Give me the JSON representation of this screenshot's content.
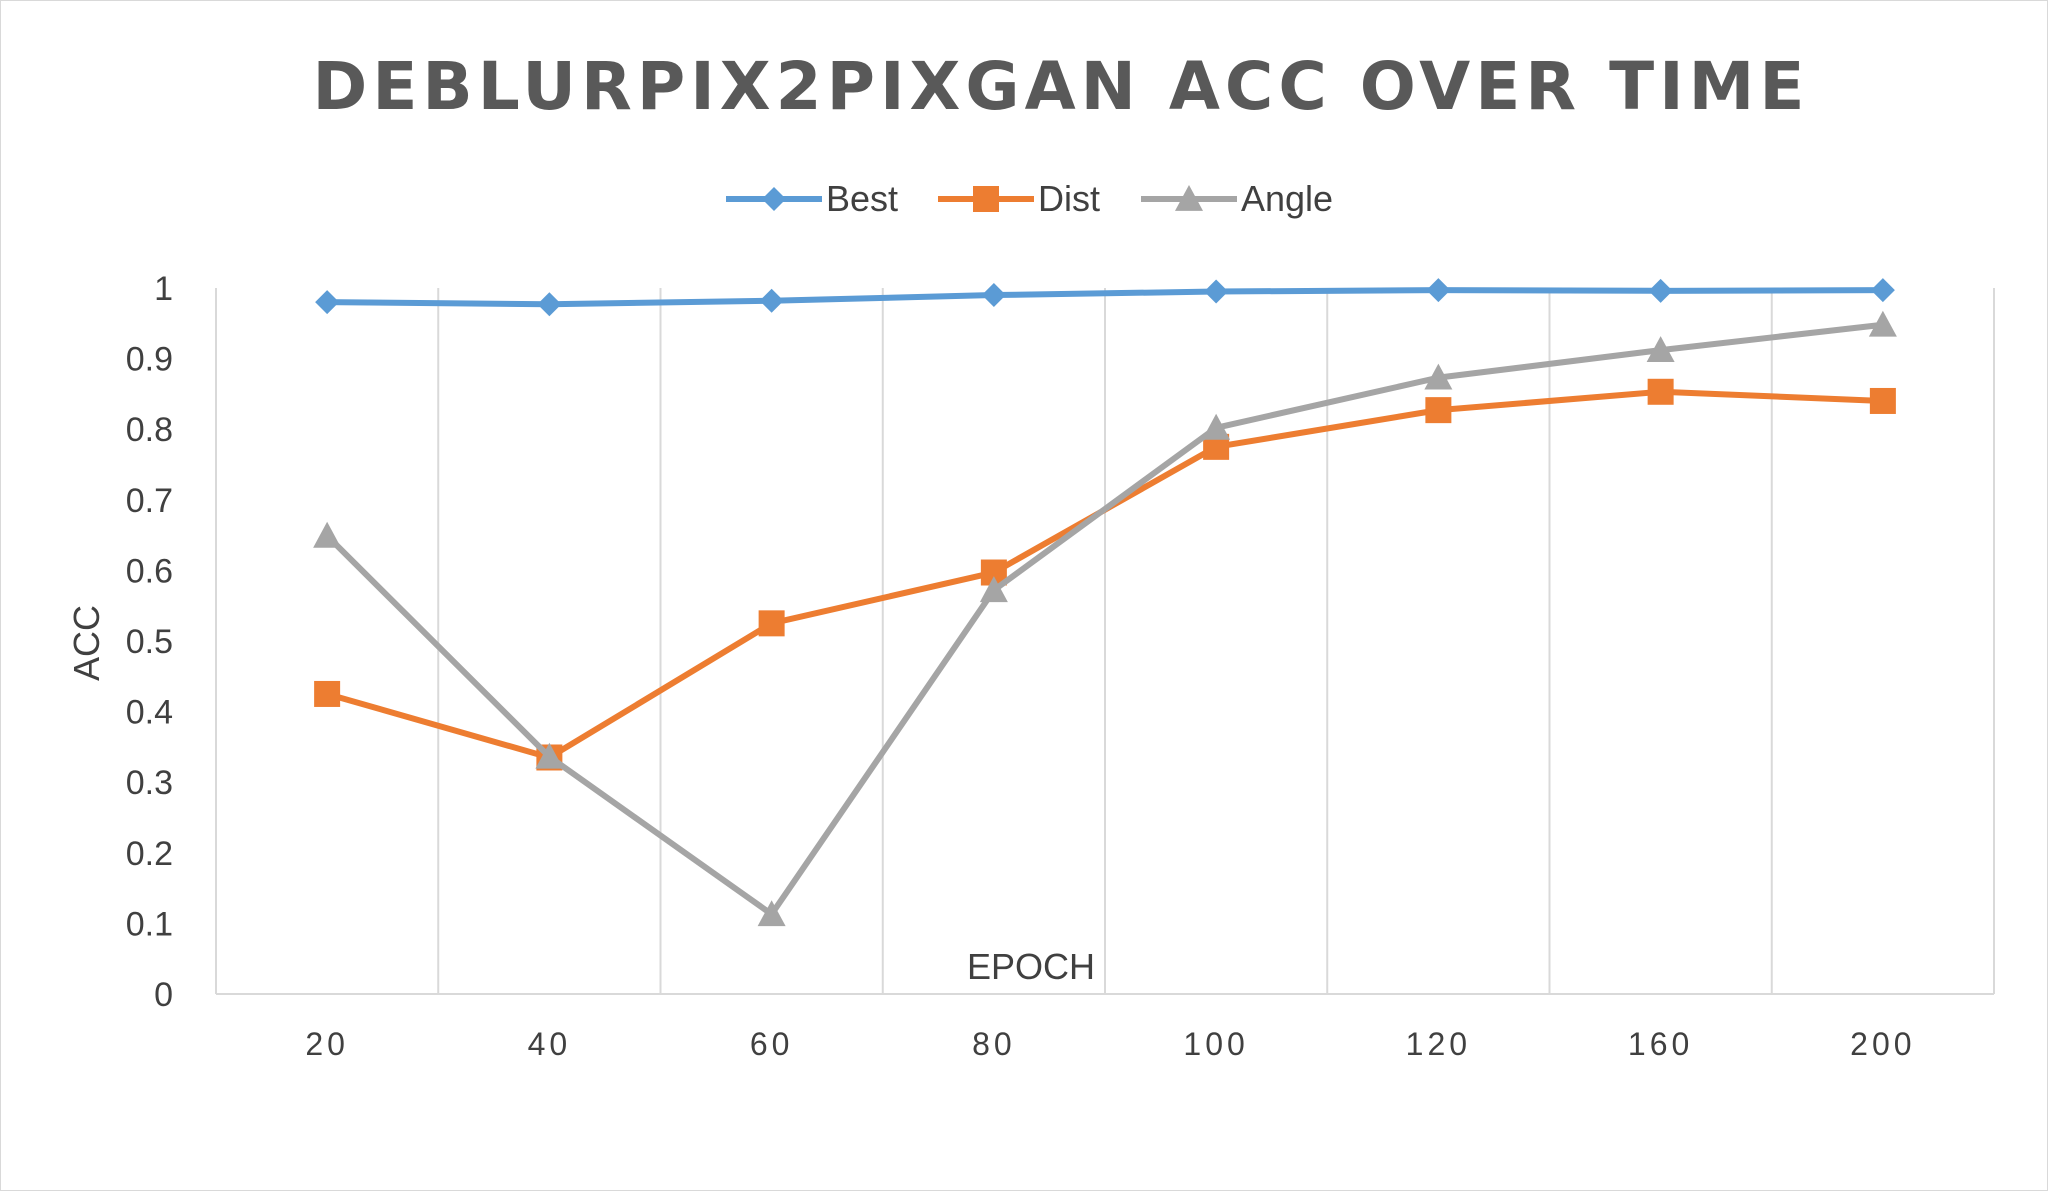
{
  "chart_data": {
    "type": "line",
    "title": "DEBLURPIX2PIXGAN ACC OVER TIME",
    "xlabel": "EPOCH",
    "ylabel": "ACC",
    "categories": [
      "20",
      "40",
      "60",
      "80",
      "100",
      "120",
      "160",
      "200"
    ],
    "ylim": [
      0,
      1
    ],
    "yticks": [
      "0",
      "0.1",
      "0.2",
      "0.3",
      "0.4",
      "0.5",
      "0.6",
      "0.7",
      "0.8",
      "0.9",
      "1"
    ],
    "grid": "vertical",
    "legend": "top-center",
    "series": [
      {
        "name": "Best",
        "marker": "diamond",
        "color": "#5b9bd5",
        "values": [
          0.98,
          0.977,
          0.982,
          0.99,
          0.995,
          0.997,
          0.996,
          0.997
        ]
      },
      {
        "name": "Dist",
        "marker": "square",
        "color": "#ed7d31",
        "values": [
          0.425,
          0.335,
          0.525,
          0.597,
          0.775,
          0.827,
          0.853,
          0.84
        ]
      },
      {
        "name": "Angle",
        "marker": "triangle",
        "color": "#a5a5a5",
        "values": [
          0.649,
          0.336,
          0.113,
          0.572,
          0.802,
          0.873,
          0.912,
          0.948
        ]
      }
    ]
  }
}
